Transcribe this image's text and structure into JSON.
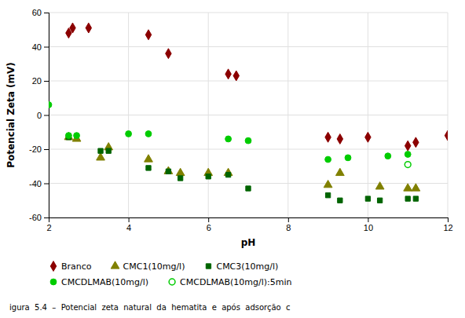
{
  "chart_data": {
    "type": "scatter",
    "x_label": "pH",
    "y_label": "Potencial Zeta (mV)",
    "annotations": [
      "igura  5.4  –  Potencial  zeta  natural  da  hematita  e  após  adsorção  c"
    ],
    "xlim": [
      2,
      12
    ],
    "ylim": [
      -60,
      60
    ],
    "xticks": [
      2,
      4,
      6,
      8,
      10,
      12
    ],
    "yticks": [
      -60,
      -40,
      -20,
      0,
      20,
      40,
      60
    ],
    "grid": true,
    "legend": "bottom",
    "series": [
      {
        "name": "Branco",
        "color": "#8b0000",
        "marker": "diamond",
        "x": [
          2.5,
          2.6,
          3.0,
          4.5,
          5.0,
          6.5,
          6.7,
          9.0,
          9.3,
          10.0,
          11.0,
          11.2,
          12.0
        ],
        "values": [
          48,
          51,
          51,
          47,
          36,
          24,
          23,
          -13,
          -14,
          -13,
          -18,
          -16,
          -12
        ]
      },
      {
        "name": "CMC1(10mg/l)",
        "color": "#808000",
        "marker": "triangle",
        "x": [
          2.5,
          2.7,
          3.3,
          3.5,
          4.5,
          5.0,
          5.3,
          6.0,
          6.5,
          9.0,
          9.3,
          10.3,
          11.0,
          11.2
        ],
        "values": [
          -13,
          -14,
          -25,
          -19,
          -26,
          -33,
          -34,
          -34,
          -34,
          -41,
          -34,
          -42,
          -43,
          -43
        ]
      },
      {
        "name": "CMC3(10mg/l)",
        "color": "#006400",
        "marker": "square",
        "x": [
          2.5,
          3.3,
          3.5,
          4.5,
          5.0,
          5.3,
          6.0,
          6.5,
          7.0,
          9.0,
          9.3,
          10.0,
          10.3,
          11.0,
          11.2
        ],
        "values": [
          -13,
          -21,
          -21,
          -31,
          -33,
          -37,
          -36,
          -35,
          -43,
          -47,
          -50,
          -49,
          -50,
          -49,
          -49
        ]
      },
      {
        "name": "CMCDLMAB(10mg/l)",
        "color": "#00cc00",
        "marker": "circle",
        "x": [
          2.0,
          2.5,
          2.7,
          4.0,
          4.5,
          6.5,
          7.0,
          9.0,
          9.5,
          10.5,
          11.0
        ],
        "values": [
          6,
          -12,
          -12,
          -11,
          -11,
          -14,
          -15,
          -26,
          -25,
          -24,
          -23
        ]
      },
      {
        "name": "CMCDLMAB(10mg/l):5min",
        "color": "#00cc00",
        "marker": "circle-open",
        "x": [
          11.0
        ],
        "values": [
          -29
        ]
      }
    ]
  }
}
